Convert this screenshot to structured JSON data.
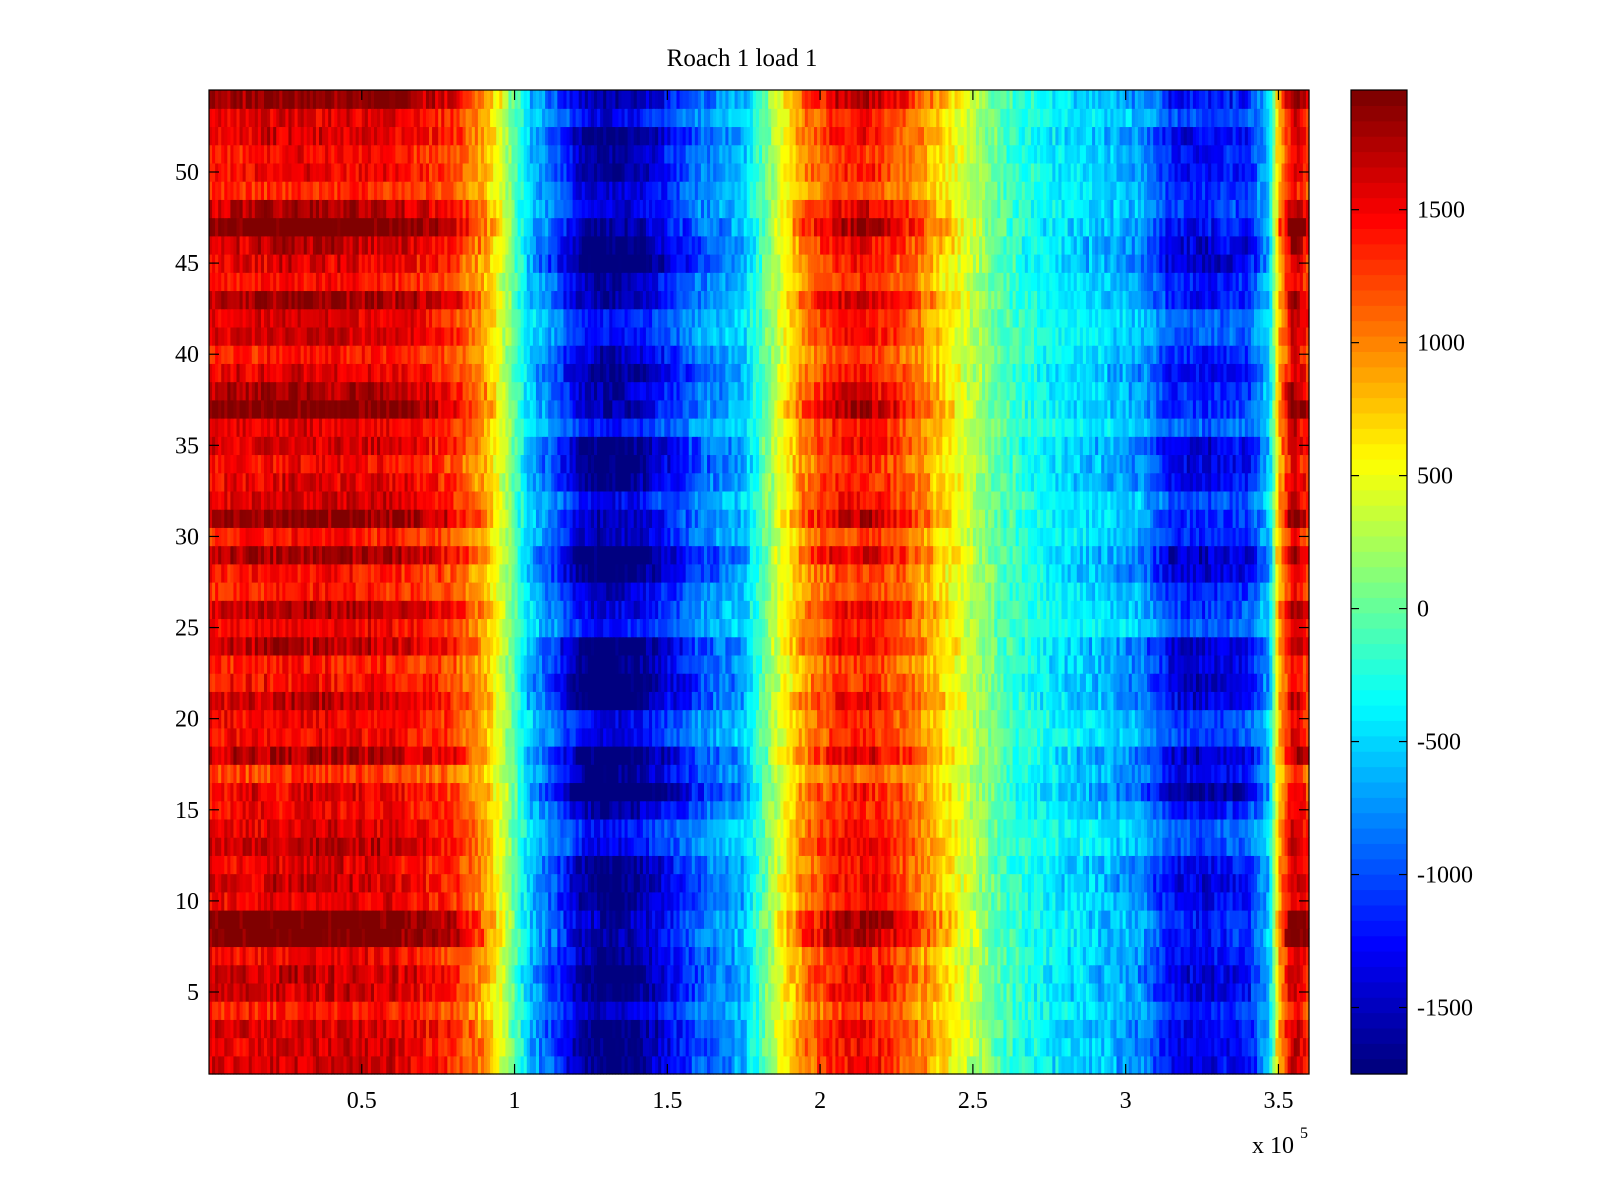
{
  "chart_data": {
    "type": "heatmap",
    "title": "Roach 1 load 1",
    "xlabel": "",
    "ylabel": "",
    "x_exponent_label": "x 10",
    "x_exponent_power": "5",
    "xlim": [
      0,
      3.6
    ],
    "ylim": [
      0.5,
      54.5
    ],
    "x_ticks": [
      0.5,
      1,
      1.5,
      2,
      2.5,
      3,
      3.5
    ],
    "x_tick_labels": [
      "0.5",
      "1",
      "1.5",
      "2",
      "2.5",
      "3",
      "3.5"
    ],
    "y_ticks": [
      5,
      10,
      15,
      20,
      25,
      30,
      35,
      40,
      45,
      50
    ],
    "y_tick_labels": [
      "5",
      "10",
      "15",
      "20",
      "25",
      "30",
      "35",
      "40",
      "45",
      "50"
    ],
    "colormap": "jet",
    "color_range": [
      -1750,
      1950
    ],
    "colorbar_ticks": [
      1500,
      1000,
      500,
      0,
      -500,
      -1000,
      -1500
    ],
    "colorbar_tick_labels": [
      "1500",
      "1000",
      "500",
      "0",
      "-500",
      "-1000",
      "-1500"
    ],
    "rows": 54,
    "column_profile": {
      "x": [
        0.0,
        0.3,
        0.6,
        0.8,
        0.9,
        0.97,
        1.05,
        1.15,
        1.22,
        1.3,
        1.4,
        1.5,
        1.6,
        1.75,
        1.85,
        1.95,
        2.05,
        2.15,
        2.3,
        2.45,
        2.6,
        2.75,
        2.9,
        3.05,
        3.15,
        3.25,
        3.4,
        3.47,
        3.5,
        3.55,
        3.6
      ],
      "values": [
        1500,
        1600,
        1550,
        1300,
        900,
        300,
        -600,
        -1100,
        -1600,
        -1750,
        -1650,
        -1300,
        -950,
        -650,
        300,
        1000,
        1350,
        1450,
        1100,
        500,
        -100,
        -400,
        -550,
        -750,
        -1250,
        -1350,
        -1200,
        -600,
        800,
        1700,
        1300
      ]
    },
    "row_offsets": {
      "rows": [
        8,
        9,
        13,
        14,
        19,
        20,
        25,
        26,
        31,
        32,
        36,
        37,
        38,
        41,
        42,
        43,
        47,
        48,
        53,
        54,
        16,
        17,
        22,
        23,
        28,
        34,
        45
      ],
      "values": [
        300,
        300,
        300,
        300,
        150,
        150,
        250,
        250,
        250,
        250,
        300,
        300,
        200,
        300,
        300,
        200,
        250,
        250,
        200,
        200,
        -200,
        -200,
        -200,
        -150,
        -150,
        -100,
        -100
      ]
    },
    "noise_amplitude": 220
  }
}
